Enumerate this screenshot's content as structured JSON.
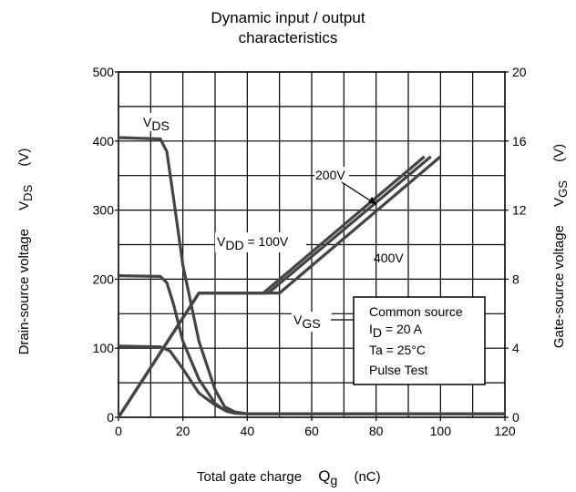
{
  "chart_data": {
    "type": "line",
    "title": [
      "Dynamic input / output",
      "characteristics"
    ],
    "xlabel": {
      "text": "Total gate charge",
      "sym": "Q",
      "sub": "g",
      "unit": "(nC)"
    },
    "ylabel_left": {
      "text": "Drain-source voltage",
      "sym": "V",
      "sub": "DS",
      "unit": "(V)"
    },
    "ylabel_right": {
      "text": "Gate-source voltage",
      "sym": "V",
      "sub": "GS",
      "unit": "(V)"
    },
    "xlim": [
      0,
      120
    ],
    "ylim_left": [
      0,
      500
    ],
    "ylim_right": [
      0,
      20
    ],
    "xticks": [
      0,
      20,
      40,
      60,
      80,
      100,
      120
    ],
    "yticks_left": [
      0,
      100,
      200,
      300,
      400,
      500
    ],
    "yticks_right": [
      0,
      4,
      8,
      12,
      16,
      20
    ],
    "grid": true,
    "series": [
      {
        "name": "VDS 400V",
        "axis": "left",
        "x": [
          0,
          13,
          15,
          17,
          20,
          25,
          30,
          33,
          36,
          40,
          120
        ],
        "y": [
          405,
          403,
          385,
          320,
          220,
          110,
          40,
          15,
          8,
          5,
          5
        ]
      },
      {
        "name": "VDS 200V",
        "axis": "left",
        "x": [
          0,
          13,
          15,
          17,
          20,
          25,
          30,
          33,
          36,
          40,
          120
        ],
        "y": [
          205,
          204,
          195,
          165,
          110,
          55,
          20,
          10,
          6,
          5,
          5
        ]
      },
      {
        "name": "VDS 100V",
        "axis": "left",
        "x": [
          0,
          13,
          16,
          20,
          25,
          30,
          34,
          40,
          120
        ],
        "y": [
          103,
          102,
          96,
          70,
          35,
          18,
          8,
          5,
          5
        ]
      },
      {
        "name": "VGS 100V",
        "axis": "right",
        "x": [
          0,
          25,
          45,
          95
        ],
        "y": [
          0,
          7.2,
          7.2,
          15.1
        ]
      },
      {
        "name": "VGS 200V",
        "axis": "right",
        "x": [
          0,
          25,
          46.5,
          97
        ],
        "y": [
          0,
          7.2,
          7.2,
          15.1
        ]
      },
      {
        "name": "VGS 400V",
        "axis": "right",
        "x": [
          0,
          25,
          50,
          100
        ],
        "y": [
          0,
          7.2,
          7.2,
          15.1
        ]
      }
    ],
    "annotations": {
      "vds": {
        "sym": "V",
        "sub": "DS"
      },
      "vgs": {
        "sym": "V",
        "sub": "GS"
      },
      "vdd100": {
        "sym": "V",
        "sub": "DD",
        "rest": " = 100V"
      },
      "v200": "200V",
      "v400": "400V"
    },
    "legend_box": {
      "line1": "Common source",
      "line2_sym": "I",
      "line2_sub": "D",
      "line2_rest": " = 20 A",
      "line3": "Ta = 25°C",
      "line4": "Pulse Test"
    }
  }
}
